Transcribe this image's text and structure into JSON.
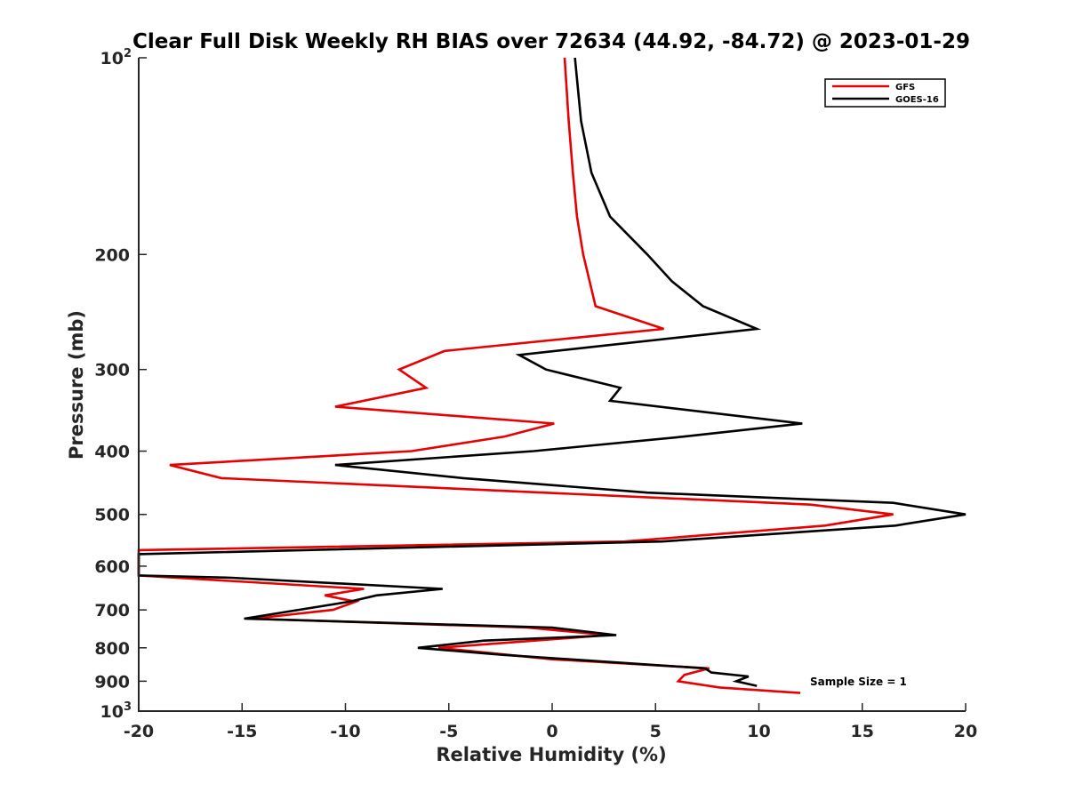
{
  "chart_data": {
    "type": "line",
    "title": "Clear Full Disk Weekly RH BIAS over 72634 (44.92, -84.72) @ 2023-01-29",
    "xlabel": "Relative Humidity (%)",
    "ylabel": "Pressure (mb)",
    "xlim": [
      -20,
      20
    ],
    "ylim": [
      100,
      1000
    ],
    "yscale": "log",
    "y_reversed": true,
    "xticks": [
      -20,
      -15,
      -10,
      -5,
      0,
      5,
      10,
      15,
      20
    ],
    "xtick_labels": [
      "-20",
      "-15",
      "-10",
      "-5",
      "0",
      "5",
      "10",
      "15",
      "20"
    ],
    "yticks": [
      {
        "value": 100,
        "base": "10",
        "exp": "2"
      },
      {
        "value": 200,
        "label": "200"
      },
      {
        "value": 300,
        "label": "300"
      },
      {
        "value": 400,
        "label": "400"
      },
      {
        "value": 500,
        "label": "500"
      },
      {
        "value": 600,
        "label": "600"
      },
      {
        "value": 700,
        "label": "700"
      },
      {
        "value": 800,
        "label": "800"
      },
      {
        "value": 900,
        "label": "900"
      },
      {
        "value": 1000,
        "base": "10",
        "exp": "3"
      }
    ],
    "legend_position": "top-right",
    "annotation": "Sample Size = 1",
    "series": [
      {
        "name": "GFS",
        "color": "#e60000",
        "points": [
          [
            0.6,
            100
          ],
          [
            0.8,
            125
          ],
          [
            1.0,
            150
          ],
          [
            1.2,
            175
          ],
          [
            1.5,
            200
          ],
          [
            2.1,
            240
          ],
          [
            5.4,
            260
          ],
          [
            -5.2,
            281
          ],
          [
            -7.4,
            300
          ],
          [
            -6.1,
            320
          ],
          [
            -10.5,
            342
          ],
          [
            0.1,
            363
          ],
          [
            -2.3,
            380
          ],
          [
            -6.8,
            400
          ],
          [
            -18.5,
            420
          ],
          [
            -16.0,
            440
          ],
          [
            12.5,
            483
          ],
          [
            16.5,
            500
          ],
          [
            13.2,
            520
          ],
          [
            3.5,
            550
          ],
          [
            -20.0,
            567
          ],
          [
            -20.0,
            620
          ],
          [
            -9.1,
            650
          ],
          [
            -11.0,
            665
          ],
          [
            -9.5,
            680
          ],
          [
            -10.6,
            700
          ],
          [
            -14.5,
            722
          ],
          [
            -1.2,
            745
          ],
          [
            2.7,
            765
          ],
          [
            -5.5,
            800
          ],
          [
            0.0,
            833
          ],
          [
            7.6,
            860
          ],
          [
            6.4,
            880
          ],
          [
            6.1,
            900
          ],
          [
            8.1,
            920
          ],
          [
            12.0,
            938
          ]
        ]
      },
      {
        "name": "GOES-16",
        "color": "#000000",
        "points": [
          [
            1.1,
            100
          ],
          [
            1.4,
            125
          ],
          [
            1.9,
            150
          ],
          [
            2.8,
            175
          ],
          [
            4.6,
            200
          ],
          [
            5.8,
            220
          ],
          [
            7.3,
            240
          ],
          [
            9.9,
            260
          ],
          [
            -1.6,
            285
          ],
          [
            -0.3,
            300
          ],
          [
            3.3,
            320
          ],
          [
            2.8,
            335
          ],
          [
            12.1,
            363
          ],
          [
            6.4,
            380
          ],
          [
            -0.9,
            400
          ],
          [
            -10.5,
            420
          ],
          [
            -4.3,
            440
          ],
          [
            4.6,
            463
          ],
          [
            16.5,
            480
          ],
          [
            20.0,
            500
          ],
          [
            16.6,
            520
          ],
          [
            5.3,
            550
          ],
          [
            -20.0,
            575
          ],
          [
            -20.0,
            620
          ],
          [
            -15.5,
            625
          ],
          [
            -5.3,
            650
          ],
          [
            -8.5,
            665
          ],
          [
            -9.8,
            680
          ],
          [
            -14.9,
            722
          ],
          [
            0.0,
            745
          ],
          [
            3.1,
            765
          ],
          [
            -3.3,
            780
          ],
          [
            -6.5,
            800
          ],
          [
            -2.4,
            820
          ],
          [
            7.4,
            860
          ],
          [
            7.7,
            873
          ],
          [
            9.5,
            885
          ],
          [
            8.9,
            900
          ],
          [
            9.9,
            915
          ]
        ]
      }
    ]
  }
}
